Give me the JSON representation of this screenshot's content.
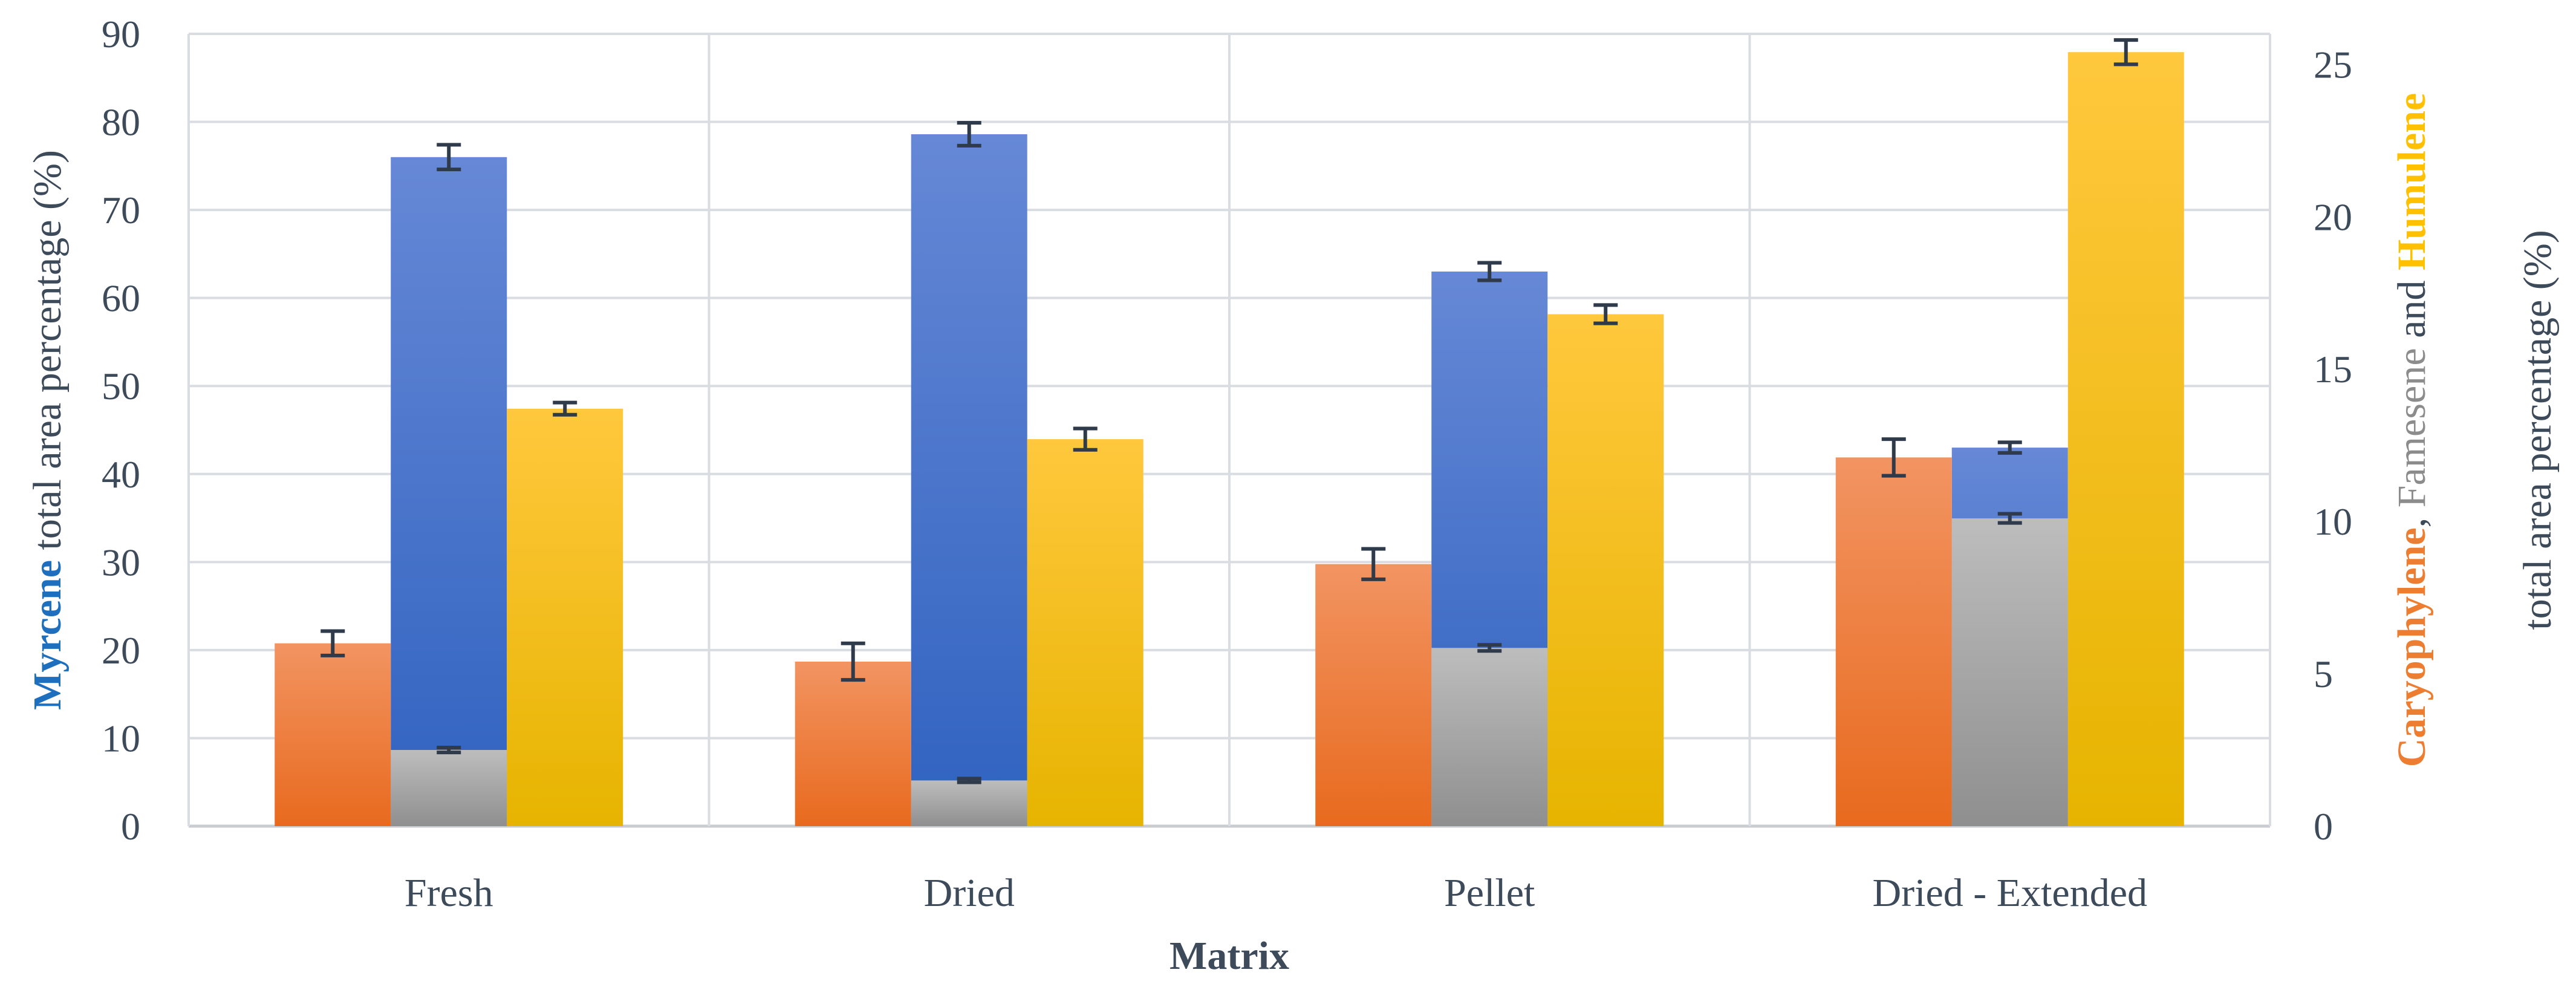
{
  "chart_data": {
    "type": "bar",
    "categories": [
      "Fresh",
      "Dried",
      "Pellet",
      "Dried - Extended"
    ],
    "xlabel": "Matrix",
    "ylabel_left": {
      "parts": [
        {
          "text": "Myrcene",
          "bold": true,
          "color": "#1f6fbf"
        },
        {
          "text": " total area percentage (%)",
          "bold": false,
          "color": "#3c4a5a"
        }
      ]
    },
    "ylabel_right": {
      "line1": [
        {
          "text": "Caryophylene",
          "bold": true,
          "color": "#ed7d31"
        },
        {
          "text": ", ",
          "bold": false,
          "color": "#3c4a5a"
        },
        {
          "text": "Famesene",
          "bold": false,
          "color": "#8c8c8c"
        },
        {
          "text": " and ",
          "bold": false,
          "color": "#3c4a5a"
        },
        {
          "text": "Humulene",
          "bold": true,
          "color": "#ffc000"
        }
      ],
      "line2": [
        {
          "text": "total area percentage (%)",
          "bold": false,
          "color": "#3c4a5a"
        }
      ]
    },
    "ylim_left": [
      0,
      90
    ],
    "yticks_left": [
      0,
      10,
      20,
      30,
      40,
      50,
      60,
      70,
      80,
      90
    ],
    "ylim_right": [
      0,
      26
    ],
    "yticks_right": [
      0,
      5,
      10,
      15,
      20,
      25
    ],
    "grid": true,
    "series": [
      {
        "name": "Caryophylene",
        "axis": "right",
        "color_top": "#f29462",
        "color_bottom": "#e86a1e",
        "values": [
          6.0,
          5.4,
          8.6,
          12.1
        ],
        "errors": [
          0.4,
          0.6,
          0.5,
          0.6
        ]
      },
      {
        "name": "Famesene",
        "axis": "right",
        "color_top": "#bdbdbd",
        "color_bottom": "#8f8f8f",
        "values": [
          2.5,
          1.5,
          5.85,
          10.1
        ],
        "errors": [
          0.08,
          0.06,
          0.1,
          0.15
        ]
      },
      {
        "name": "Humulene",
        "axis": "right",
        "color_top": "#ffc83d",
        "color_bottom": "#e6b400",
        "values": [
          13.7,
          12.7,
          16.8,
          25.4
        ],
        "errors": [
          0.2,
          0.35,
          0.3,
          0.4
        ]
      },
      {
        "name": "Myrcene",
        "axis": "left",
        "color_top": "#6688d6",
        "color_bottom": "#2f62c0",
        "values": [
          76,
          78.6,
          63,
          43
        ],
        "errors": [
          1.4,
          1.3,
          1.0,
          0.6
        ]
      }
    ]
  }
}
